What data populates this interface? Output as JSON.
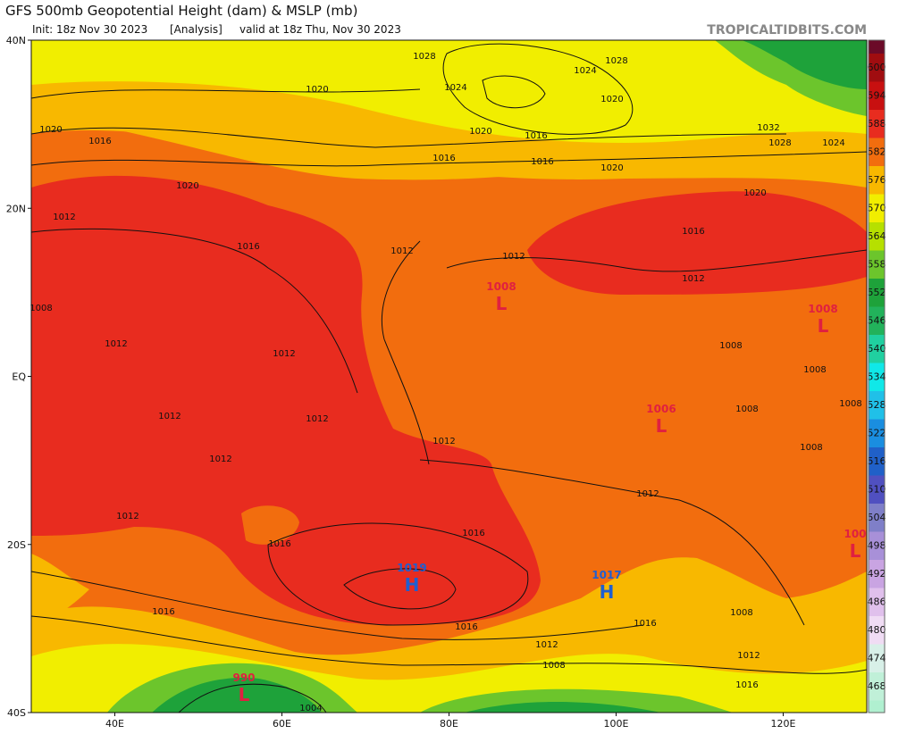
{
  "header": {
    "title": "GFS 500mb Geopotential Height (dam) & MSLP (mb)",
    "init": "Init: 18z Nov 30 2023",
    "run": "[Analysis]",
    "valid": "valid at 18z Thu, Nov 30 2023",
    "site": "TROPICALTIDBITS.COM"
  },
  "map": {
    "lat_labels": [
      "40N",
      "20N",
      "EQ",
      "20S",
      "40S"
    ],
    "lon_labels": [
      "40E",
      "60E",
      "80E",
      "100E",
      "120E"
    ],
    "pressure_centers": [
      {
        "letter": "L",
        "value": "1008"
      },
      {
        "letter": "L",
        "value": "1008"
      },
      {
        "letter": "L",
        "value": "1006"
      },
      {
        "letter": "H",
        "value": "1019"
      },
      {
        "letter": "H",
        "value": "1017"
      },
      {
        "letter": "L",
        "value": "100"
      },
      {
        "letter": "L",
        "value": "990"
      }
    ],
    "isobar_labels": [
      "1028",
      "1024",
      "1028",
      "1020",
      "1024",
      "1020",
      "1020",
      "1016",
      "1020",
      "1016",
      "1016",
      "1016",
      "1032",
      "1028",
      "1024",
      "1020",
      "1020",
      "1020",
      "1012",
      "1016",
      "1016",
      "1012",
      "1012",
      "1012",
      "1008",
      "1012",
      "1012",
      "1008",
      "1008",
      "1012",
      "1012",
      "1008",
      "1008",
      "1012",
      "1012",
      "1008",
      "1012",
      "1012",
      "1016",
      "1016",
      "1016",
      "1016",
      "1016",
      "1008",
      "1012",
      "1012",
      "1008",
      "1016",
      "1004"
    ]
  },
  "colorbar": {
    "ticks": [
      600,
      594,
      588,
      582,
      576,
      570,
      564,
      558,
      552,
      546,
      540,
      534,
      528,
      522,
      516,
      510,
      504,
      498,
      492,
      486,
      480,
      474,
      468
    ]
  }
}
